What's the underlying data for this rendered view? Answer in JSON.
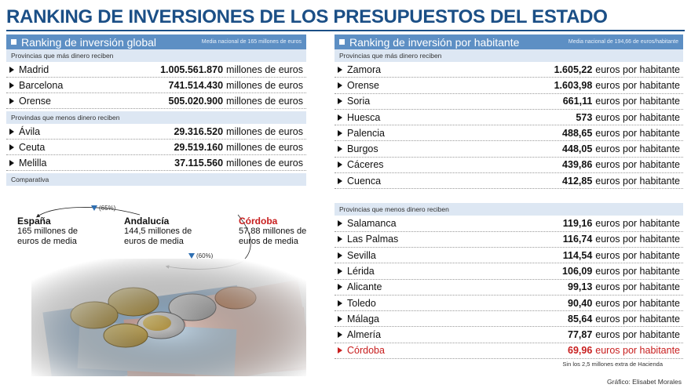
{
  "title": "RANKING DE INVERSIONES DE LOS PRESUPUESTOS DEL ESTADO",
  "global": {
    "header": "Ranking de inversión global",
    "note": "Media nacional de 165 millones de euros",
    "top_label": "Provincias que más dinero reciben",
    "top": [
      {
        "name": "Madrid",
        "value": "1.005.561.870",
        "unit": "millones de euros"
      },
      {
        "name": "Barcelona",
        "value": "741.514.430",
        "unit": "millones de euros"
      },
      {
        "name": "Orense",
        "value": "505.020.900",
        "unit": "millones de euros"
      }
    ],
    "bottom_label": "Provindas que menos dinero reciben",
    "bottom": [
      {
        "name": "Ávila",
        "value": "29.316.520",
        "unit": "millones de euros"
      },
      {
        "name": "Ceuta",
        "value": "29.519.160",
        "unit": "millones de euros"
      },
      {
        "name": "Melilla",
        "value": "37.115.560",
        "unit": "millones de euros"
      }
    ]
  },
  "comparativa": {
    "label": "Comparativa",
    "espana_name": "España",
    "espana_text1": "165 millones de",
    "espana_text2": "euros de media",
    "andalucia_name": "Andalucía",
    "andalucia_text1": "144,5 millones de",
    "andalucia_text2": "euros de media",
    "cordoba_name": "Córdoba",
    "cordoba_text1": "57,88 millones de",
    "cordoba_text2": "euros de media",
    "pct_top": "(65%)",
    "pct_bottom": "(60%)",
    "accent_red": "#c81e1e",
    "accent_blue": "#2f6fb2"
  },
  "per_capita": {
    "header": "Ranking de inversión por habitante",
    "note": "Media nacional de 194,66 de euros/habitante",
    "top_label": "Provincias que más dinero reciben",
    "top": [
      {
        "name": "Zamora",
        "value": "1.605,22",
        "unit": "euros por habitante"
      },
      {
        "name": "Orense",
        "value": "1.603,98",
        "unit": "euros por habitante"
      },
      {
        "name": "Soria",
        "value": "661,11",
        "unit": "euros por habitante"
      },
      {
        "name": "Huesca",
        "value": "573",
        "unit": "euros por habitante"
      },
      {
        "name": "Palencia",
        "value": "488,65",
        "unit": "euros por habitante"
      },
      {
        "name": "Burgos",
        "value": "448,05",
        "unit": "euros por habitante"
      },
      {
        "name": "Cáceres",
        "value": "439,86",
        "unit": "euros por habitante"
      },
      {
        "name": "Cuenca",
        "value": "412,85",
        "unit": "euros por habitante"
      }
    ],
    "bottom_label": "Provincias que menos dinero reciben",
    "bottom": [
      {
        "name": "Salamanca",
        "value": "119,16",
        "unit": "euros por habitante"
      },
      {
        "name": "Las Palmas",
        "value": "116,74",
        "unit": "euros por habitante"
      },
      {
        "name": "Sevilla",
        "value": "114,54",
        "unit": "euros por habitante"
      },
      {
        "name": "Lérida",
        "value": "106,09",
        "unit": "euros por habitante"
      },
      {
        "name": "Alicante",
        "value": "99,13",
        "unit": "euros por habitante"
      },
      {
        "name": "Toledo",
        "value": "90,40",
        "unit": "euros por habitante"
      },
      {
        "name": "Málaga",
        "value": "85,64",
        "unit": "euros por habitante"
      },
      {
        "name": "Almería",
        "value": "77,87",
        "unit": "euros por habitante"
      },
      {
        "name": "Córdoba",
        "value": "69,96",
        "unit": "euros por habitante",
        "highlight": true
      }
    ],
    "footnote": "Sin los 2,5 millones extra de Hacienda"
  },
  "credit": "Gráfico: Elisabet Morales"
}
